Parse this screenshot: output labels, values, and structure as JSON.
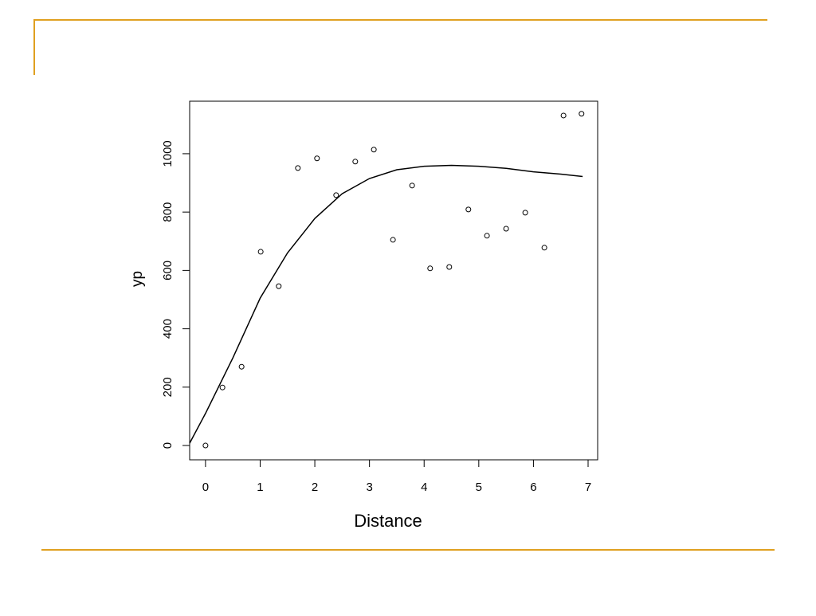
{
  "chart_data": {
    "type": "scatter",
    "x_label": "Distance",
    "y_label": "yp",
    "xlim": [
      -0.29,
      7.175
    ],
    "ylim": [
      -49,
      1180
    ],
    "xticks": [
      0,
      1,
      2,
      3,
      4,
      5,
      6,
      7
    ],
    "yticks": [
      0,
      200,
      400,
      600,
      800,
      1000
    ],
    "series": [
      {
        "type": "scatter",
        "color": "#000000",
        "x": [
          0,
          0.31,
          0.66,
          1.01,
          1.34,
          1.69,
          2.04,
          2.39,
          2.74,
          3.08,
          3.43,
          3.78,
          4.11,
          4.46,
          4.81,
          5.15,
          5.5,
          5.85,
          6.2,
          6.55,
          6.88
        ],
        "values": [
          0,
          199,
          270,
          664,
          546,
          951,
          984,
          858,
          973,
          1014,
          705,
          891,
          607,
          612,
          809,
          719,
          743,
          798,
          678,
          1131,
          1137
        ]
      },
      {
        "type": "line",
        "color": "#000000",
        "x": [
          -0.29,
          0,
          0.5,
          1,
          1.5,
          2,
          2.5,
          3,
          3.5,
          4,
          4.5,
          5,
          5.5,
          6,
          6.5,
          6.9
        ],
        "values": [
          8,
          110,
          300,
          505,
          660,
          778,
          863,
          915,
          945,
          957,
          960,
          957,
          950,
          938,
          930,
          922
        ]
      }
    ]
  }
}
